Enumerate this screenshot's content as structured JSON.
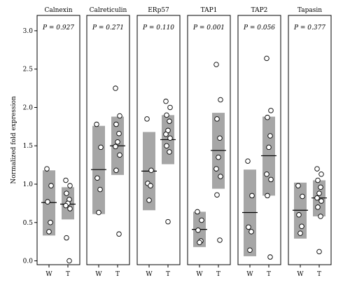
{
  "chart_data": {
    "type": "scatter",
    "ylabel": "Normalized fold expression",
    "ylim": [
      -0.05,
      3.2
    ],
    "yticks": [
      "0.0",
      "0.5",
      "1.0",
      "1.5",
      "2.0",
      "2.5",
      "3.0"
    ],
    "yticks_values": [
      0,
      0.5,
      1.0,
      1.5,
      2.0,
      2.5,
      3.0
    ],
    "categories": [
      "W",
      "T"
    ],
    "panels": [
      {
        "title": "Calnexin",
        "p_value": "P = 0.927",
        "groups": [
          {
            "name": "W",
            "box": [
              0.33,
              1.18
            ],
            "median": 0.76,
            "points": [
              1.2,
              0.98,
              0.77,
              0.5,
              0.38
            ]
          },
          {
            "name": "T",
            "box": [
              0.54,
              0.96
            ],
            "median": 0.74,
            "points": [
              1.05,
              0.98,
              0.88,
              0.8,
              0.75,
              0.72,
              0.68,
              0.3,
              0.0
            ]
          }
        ]
      },
      {
        "title": "Calreticulin",
        "p_value": "P = 0.271",
        "groups": [
          {
            "name": "W",
            "box": [
              0.61,
              1.76
            ],
            "median": 1.19,
            "points": [
              1.78,
              1.48,
              1.08,
              0.93,
              0.63
            ]
          },
          {
            "name": "T",
            "box": [
              1.12,
              1.88
            ],
            "median": 1.5,
            "points": [
              2.25,
              1.89,
              1.78,
              1.66,
              1.55,
              1.49,
              1.38,
              1.18,
              0.35
            ]
          }
        ]
      },
      {
        "title": "ERp57",
        "p_value": "P = 0.110",
        "groups": [
          {
            "name": "W",
            "box": [
              0.66,
              1.68
            ],
            "median": 1.17,
            "points": [
              1.85,
              1.18,
              1.01,
              0.98,
              0.79
            ]
          },
          {
            "name": "T",
            "box": [
              1.26,
              1.9
            ],
            "median": 1.58,
            "points": [
              2.08,
              2.0,
              1.9,
              1.82,
              1.7,
              1.65,
              1.6,
              1.5,
              1.42,
              0.51
            ]
          }
        ]
      },
      {
        "title": "TAP1",
        "p_value": "P = 0.001",
        "groups": [
          {
            "name": "W",
            "box": [
              0.18,
              0.64
            ],
            "median": 0.41,
            "points": [
              0.64,
              0.53,
              0.4,
              0.26,
              0.24
            ]
          },
          {
            "name": "T",
            "box": [
              0.94,
              1.93
            ],
            "median": 1.44,
            "points": [
              2.56,
              2.1,
              1.85,
              1.6,
              1.35,
              1.2,
              1.1,
              0.86,
              0.27
            ]
          }
        ]
      },
      {
        "title": "TAP2",
        "p_value": "P = 0.056",
        "groups": [
          {
            "name": "W",
            "box": [
              0.06,
              1.19
            ],
            "median": 0.63,
            "points": [
              1.3,
              0.85,
              0.44,
              0.38,
              0.14
            ]
          },
          {
            "name": "T",
            "box": [
              0.85,
              1.88
            ],
            "median": 1.37,
            "points": [
              2.64,
              1.96,
              1.87,
              1.63,
              1.48,
              1.13,
              1.06,
              0.85,
              0.05
            ]
          }
        ]
      },
      {
        "title": "Tapasin",
        "p_value": "P = 0.377",
        "groups": [
          {
            "name": "W",
            "box": [
              0.29,
              1.02
            ],
            "median": 0.66,
            "points": [
              0.98,
              0.84,
              0.6,
              0.45,
              0.36
            ]
          },
          {
            "name": "T",
            "box": [
              0.58,
              1.05
            ],
            "median": 0.82,
            "points": [
              1.2,
              1.13,
              1.05,
              0.96,
              0.88,
              0.82,
              0.78,
              0.7,
              0.58,
              0.12
            ]
          }
        ]
      }
    ]
  },
  "colors": {
    "box": "#a6a6a6",
    "median": "#000000",
    "point_fill": "#ffffff",
    "point_stroke": "#000000",
    "frame": "#000000"
  }
}
